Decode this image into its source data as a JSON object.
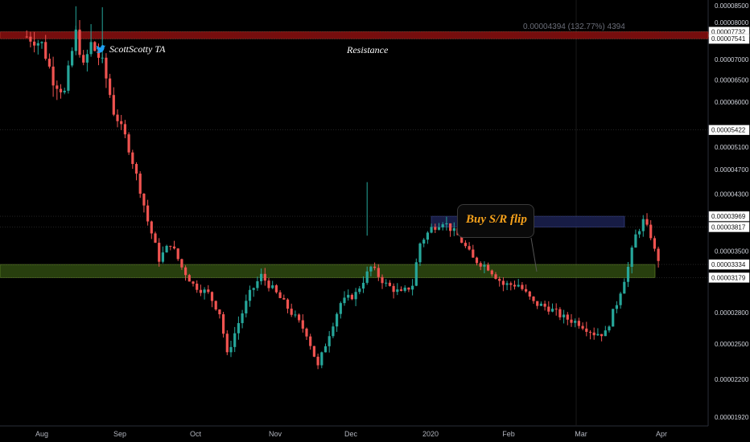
{
  "header": {
    "measure": "0.00004394 (132.77%) 4394"
  },
  "brand": {
    "handle": "ScottScotty TA",
    "icon": "twitter-bird-icon",
    "icon_color": "#1da1f2"
  },
  "annotations": {
    "resistance": "Resistance",
    "buy_flip": "Buy S/R flip",
    "buy_flip_color": "#f7a21b"
  },
  "colors": {
    "up": "#26a69a",
    "down": "#ef5350",
    "resistance_zone": "#8b0f0f",
    "support_zone": "#2f4a10",
    "flip_zone": "#1a1f4d"
  },
  "chart_data": {
    "type": "candlestick",
    "x_tick_labels": [
      "Aug",
      "Sep",
      "Oct",
      "Nov",
      "Dec",
      "2020",
      "Feb",
      "Mar",
      "Apr"
    ],
    "y_tick_labels": [
      "0.00008500",
      "0.00008000",
      "0.00007000",
      "0.00006500",
      "0.00006000",
      "0.00005100",
      "0.00004700",
      "0.00004300",
      "0.00003500",
      "0.00002800",
      "0.00002500",
      "0.00002200",
      "0.00001920"
    ],
    "y_tick_values": [
      8500,
      8000,
      7000,
      6500,
      6000,
      5100,
      4700,
      4300,
      3500,
      2800,
      2500,
      2200,
      1920
    ],
    "boxed_levels": [
      "0.00007732",
      "0.00007541",
      "0.00005422",
      "0.00003969",
      "0.00003817",
      "0.00003334",
      "0.00003179"
    ],
    "boxed_values": [
      7732,
      7541,
      5422,
      3969,
      3817,
      3334,
      3179
    ],
    "zones": [
      {
        "name": "Resistance",
        "low": 7541,
        "high": 7732
      },
      {
        "name": "support",
        "low": 3179,
        "high": 3334
      },
      {
        "name": "flip",
        "low": 3817,
        "high": 3969
      }
    ],
    "price_path": [
      [
        -4,
        7600
      ],
      [
        0,
        7400
      ],
      [
        3,
        6500
      ],
      [
        6,
        6200
      ],
      [
        9,
        7700
      ],
      [
        11,
        6800
      ],
      [
        13,
        7400
      ],
      [
        16,
        6900
      ],
      [
        19,
        5800
      ],
      [
        22,
        5300
      ],
      [
        25,
        4600
      ],
      [
        28,
        3900
      ],
      [
        31,
        3400
      ],
      [
        34,
        3600
      ],
      [
        37,
        3300
      ],
      [
        40,
        3100
      ],
      [
        44,
        3000
      ],
      [
        47,
        2800
      ],
      [
        49,
        2400
      ],
      [
        52,
        2700
      ],
      [
        55,
        3000
      ],
      [
        58,
        3200
      ],
      [
        62,
        3000
      ],
      [
        66,
        2800
      ],
      [
        70,
        2600
      ],
      [
        73,
        2300
      ],
      [
        76,
        2600
      ],
      [
        79,
        2900
      ],
      [
        83,
        3000
      ],
      [
        87,
        3300
      ],
      [
        91,
        3100
      ],
      [
        95,
        3000
      ],
      [
        98,
        3100
      ],
      [
        100,
        3600
      ],
      [
        103,
        3800
      ],
      [
        106,
        3900
      ],
      [
        110,
        3700
      ],
      [
        114,
        3400
      ],
      [
        118,
        3300
      ],
      [
        122,
        3100
      ],
      [
        126,
        3100
      ],
      [
        130,
        2900
      ],
      [
        134,
        2850
      ],
      [
        138,
        2750
      ],
      [
        142,
        2700
      ],
      [
        146,
        2600
      ],
      [
        149,
        2600
      ],
      [
        152,
        2900
      ],
      [
        155,
        3300
      ],
      [
        157,
        3700
      ],
      [
        159,
        3900
      ],
      [
        161,
        3700
      ],
      [
        162,
        3500
      ],
      [
        163,
        3400
      ]
    ]
  }
}
